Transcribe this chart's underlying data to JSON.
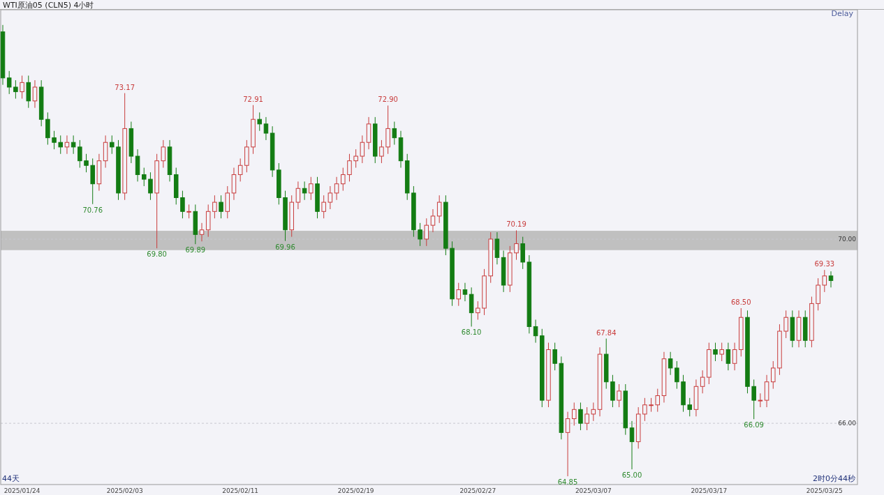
{
  "chart_data": {
    "type": "candlestick",
    "title": "WTI原油05 (CLN5) 4小时",
    "categories": [
      null,
      null,
      null,
      "2025/01/24",
      null,
      null,
      null,
      null,
      null,
      null,
      null,
      null,
      null,
      null,
      null,
      null,
      null,
      null,
      null,
      "2025/02/03",
      null,
      null,
      null,
      null,
      null,
      null,
      null,
      null,
      null,
      null,
      null,
      null,
      null,
      null,
      null,
      null,
      null,
      "2025/02/11",
      null,
      null,
      null,
      null,
      null,
      null,
      null,
      null,
      null,
      null,
      null,
      null,
      null,
      null,
      null,
      null,
      null,
      "2025/02/19",
      null,
      null,
      null,
      null,
      null,
      null,
      null,
      null,
      null,
      null,
      null,
      null,
      null,
      null,
      null,
      null,
      null,
      null,
      "2025/02/27",
      null,
      null,
      null,
      null,
      null,
      null,
      null,
      null,
      null,
      null,
      null,
      null,
      null,
      null,
      null,
      null,
      null,
      "2025/03/07",
      null,
      null,
      null,
      null,
      null,
      null,
      null,
      null,
      null,
      null,
      null,
      null,
      null,
      null,
      null,
      null,
      null,
      "2025/03/17",
      null,
      null,
      null,
      null,
      null,
      null,
      null,
      null,
      null,
      null,
      null,
      null,
      null,
      null,
      null,
      null,
      null,
      "2025/03/25",
      null
    ],
    "ohlc": [
      [
        74.5,
        74.65,
        73.35,
        73.5
      ],
      [
        73.5,
        73.65,
        73.15,
        73.3
      ],
      [
        73.3,
        73.45,
        73.05,
        73.2
      ],
      [
        73.2,
        73.55,
        73.05,
        73.4
      ],
      [
        73.4,
        73.55,
        72.85,
        73.0
      ],
      [
        73.0,
        73.45,
        72.85,
        73.3
      ],
      [
        73.3,
        73.45,
        72.45,
        72.6
      ],
      [
        72.6,
        72.75,
        72.05,
        72.2
      ],
      [
        72.2,
        72.35,
        71.95,
        72.1
      ],
      [
        72.1,
        72.25,
        71.85,
        72.0
      ],
      [
        72.0,
        72.25,
        71.85,
        72.1
      ],
      [
        72.1,
        72.25,
        71.85,
        72.0
      ],
      [
        72.0,
        72.15,
        71.55,
        71.7
      ],
      [
        71.7,
        71.85,
        71.45,
        71.6
      ],
      [
        71.6,
        71.75,
        70.76,
        71.2
      ],
      [
        71.2,
        71.85,
        71.05,
        71.7
      ],
      [
        71.7,
        72.25,
        71.55,
        72.1
      ],
      [
        72.1,
        72.25,
        71.85,
        72.0
      ],
      [
        72.0,
        72.15,
        70.85,
        71.0
      ],
      [
        71.0,
        73.17,
        70.85,
        72.4
      ],
      [
        72.4,
        72.55,
        71.65,
        71.8
      ],
      [
        71.8,
        71.95,
        71.25,
        71.4
      ],
      [
        71.4,
        71.55,
        71.15,
        71.3
      ],
      [
        71.3,
        71.45,
        70.85,
        71.0
      ],
      [
        71.0,
        71.85,
        69.8,
        71.7
      ],
      [
        71.7,
        72.15,
        71.55,
        72.0
      ],
      [
        72.0,
        72.15,
        71.25,
        71.4
      ],
      [
        71.4,
        71.55,
        70.75,
        70.9
      ],
      [
        70.9,
        71.05,
        70.45,
        70.6
      ],
      [
        70.6,
        70.75,
        70.45,
        70.6
      ],
      [
        70.6,
        70.75,
        69.89,
        70.1
      ],
      [
        70.1,
        70.35,
        69.95,
        70.2
      ],
      [
        70.2,
        70.75,
        70.05,
        70.6
      ],
      [
        70.6,
        70.95,
        70.45,
        70.8
      ],
      [
        70.8,
        70.95,
        70.45,
        70.6
      ],
      [
        70.6,
        71.15,
        70.45,
        71.0
      ],
      [
        71.0,
        71.55,
        70.85,
        71.4
      ],
      [
        71.4,
        71.75,
        71.25,
        71.6
      ],
      [
        71.6,
        72.15,
        71.45,
        72.0
      ],
      [
        72.0,
        72.91,
        71.85,
        72.6
      ],
      [
        72.6,
        72.75,
        72.35,
        72.5
      ],
      [
        72.5,
        72.65,
        72.15,
        72.3
      ],
      [
        72.3,
        72.45,
        71.35,
        71.5
      ],
      [
        71.5,
        71.65,
        70.75,
        70.9
      ],
      [
        70.9,
        71.05,
        69.96,
        70.2
      ],
      [
        70.2,
        70.95,
        70.05,
        70.8
      ],
      [
        70.8,
        71.25,
        70.65,
        71.1
      ],
      [
        71.1,
        71.25,
        70.85,
        71.0
      ],
      [
        71.0,
        71.35,
        70.85,
        71.2
      ],
      [
        71.2,
        71.35,
        70.45,
        70.6
      ],
      [
        70.6,
        70.95,
        70.45,
        70.8
      ],
      [
        70.8,
        71.15,
        70.65,
        71.0
      ],
      [
        71.0,
        71.35,
        70.85,
        71.2
      ],
      [
        71.2,
        71.55,
        71.05,
        71.4
      ],
      [
        71.4,
        71.85,
        71.25,
        71.7
      ],
      [
        71.7,
        71.95,
        71.55,
        71.8
      ],
      [
        71.8,
        72.25,
        71.65,
        72.1
      ],
      [
        72.1,
        72.65,
        71.95,
        72.5
      ],
      [
        72.5,
        72.65,
        71.65,
        71.8
      ],
      [
        71.8,
        72.15,
        71.65,
        72.0
      ],
      [
        72.0,
        72.9,
        71.85,
        72.4
      ],
      [
        72.4,
        72.55,
        72.05,
        72.2
      ],
      [
        72.2,
        72.35,
        71.55,
        71.7
      ],
      [
        71.7,
        71.85,
        70.85,
        71.0
      ],
      [
        71.0,
        71.15,
        70.05,
        70.2
      ],
      [
        70.2,
        70.35,
        69.85,
        70.0
      ],
      [
        70.0,
        70.45,
        69.85,
        70.3
      ],
      [
        70.3,
        70.65,
        70.15,
        70.5
      ],
      [
        70.5,
        70.95,
        70.35,
        70.8
      ],
      [
        70.8,
        70.95,
        69.65,
        69.8
      ],
      [
        69.8,
        69.95,
        68.55,
        68.7
      ],
      [
        68.7,
        69.05,
        68.55,
        68.9
      ],
      [
        68.9,
        69.05,
        68.65,
        68.8
      ],
      [
        68.8,
        68.95,
        68.1,
        68.4
      ],
      [
        68.4,
        68.65,
        68.25,
        68.5
      ],
      [
        68.5,
        69.35,
        68.35,
        69.2
      ],
      [
        69.2,
        70.15,
        69.05,
        70.0
      ],
      [
        70.0,
        70.15,
        69.45,
        69.6
      ],
      [
        69.6,
        69.75,
        68.85,
        69.0
      ],
      [
        69.0,
        69.85,
        68.85,
        69.7
      ],
      [
        69.7,
        70.19,
        69.55,
        69.9
      ],
      [
        69.9,
        70.05,
        69.35,
        69.5
      ],
      [
        69.5,
        69.65,
        67.95,
        68.1
      ],
      [
        68.1,
        68.25,
        67.75,
        67.9
      ],
      [
        67.9,
        68.05,
        66.35,
        66.5
      ],
      [
        66.5,
        67.75,
        66.35,
        67.6
      ],
      [
        67.6,
        67.75,
        67.15,
        67.3
      ],
      [
        67.3,
        67.45,
        65.65,
        65.8
      ],
      [
        65.8,
        66.25,
        64.85,
        66.1
      ],
      [
        66.1,
        66.45,
        65.95,
        66.3
      ],
      [
        66.3,
        66.45,
        65.85,
        66.0
      ],
      [
        66.0,
        66.35,
        65.85,
        66.2
      ],
      [
        66.2,
        66.45,
        66.05,
        66.3
      ],
      [
        66.3,
        67.65,
        66.15,
        67.5
      ],
      [
        67.5,
        67.84,
        66.75,
        66.9
      ],
      [
        66.9,
        67.05,
        66.35,
        66.5
      ],
      [
        66.5,
        66.85,
        66.35,
        66.7
      ],
      [
        66.7,
        66.85,
        65.75,
        65.9
      ],
      [
        65.9,
        66.05,
        65.0,
        65.6
      ],
      [
        65.6,
        66.35,
        65.45,
        66.2
      ],
      [
        66.2,
        66.55,
        66.05,
        66.4
      ],
      [
        66.4,
        66.55,
        66.25,
        66.4
      ],
      [
        66.4,
        66.75,
        66.25,
        66.6
      ],
      [
        66.6,
        67.55,
        66.45,
        67.4
      ],
      [
        67.4,
        67.55,
        67.05,
        67.2
      ],
      [
        67.2,
        67.35,
        66.75,
        66.9
      ],
      [
        66.9,
        67.05,
        66.25,
        66.4
      ],
      [
        66.4,
        66.55,
        66.15,
        66.3
      ],
      [
        66.3,
        66.95,
        66.15,
        66.8
      ],
      [
        66.8,
        67.15,
        66.65,
        67.0
      ],
      [
        67.0,
        67.75,
        66.85,
        67.6
      ],
      [
        67.6,
        67.75,
        67.35,
        67.5
      ],
      [
        67.5,
        67.75,
        67.35,
        67.6
      ],
      [
        67.6,
        67.75,
        67.15,
        67.3
      ],
      [
        67.3,
        67.75,
        67.15,
        67.6
      ],
      [
        67.6,
        68.5,
        67.45,
        68.3
      ],
      [
        68.3,
        68.45,
        66.65,
        66.8
      ],
      [
        66.8,
        66.95,
        66.09,
        66.5
      ],
      [
        66.5,
        66.65,
        66.35,
        66.5
      ],
      [
        66.5,
        67.05,
        66.35,
        66.9
      ],
      [
        66.9,
        67.35,
        66.75,
        67.2
      ],
      [
        67.2,
        68.15,
        67.05,
        68.0
      ],
      [
        68.0,
        68.45,
        67.85,
        68.3
      ],
      [
        68.3,
        68.45,
        67.65,
        67.8
      ],
      [
        67.8,
        68.45,
        67.65,
        68.3
      ],
      [
        68.3,
        68.45,
        67.65,
        67.8
      ],
      [
        67.8,
        68.75,
        67.65,
        68.6
      ],
      [
        68.6,
        69.15,
        68.45,
        69.0
      ],
      [
        69.0,
        69.33,
        68.85,
        69.2
      ],
      [
        69.2,
        69.3,
        68.95,
        69.1
      ]
    ],
    "ylim": [
      64.67,
      74.98
    ],
    "yticks": [
      {
        "value": 70,
        "label": "70.00"
      },
      {
        "value": 66,
        "label": "66.00"
      }
    ],
    "grid": "y",
    "bands": [
      {
        "axis": "y",
        "from": 69.76,
        "to": 70.18,
        "color": "#c0c0c0"
      }
    ],
    "annotations": [
      "Delay",
      "44天",
      "2时0分44秒",
      {
        "text": "73.17",
        "y": 73.17
      },
      {
        "text": "70.76",
        "y": 70.76
      },
      {
        "text": "69.80",
        "y": 69.8
      },
      {
        "text": "69.89",
        "y": 69.89
      },
      {
        "text": "72.91",
        "y": 72.91
      },
      {
        "text": "69.96",
        "y": 69.96
      },
      {
        "text": "72.90",
        "y": 72.9
      },
      {
        "text": "68.10",
        "y": 68.1
      },
      {
        "text": "70.19",
        "y": 70.19
      },
      {
        "text": "64.85",
        "y": 64.85
      },
      {
        "text": "67.84",
        "y": 67.84
      },
      {
        "text": "65.00",
        "y": 65.0
      },
      {
        "text": "68.50",
        "y": 68.5
      },
      {
        "text": "66.09",
        "y": 66.09
      },
      {
        "text": "69.33",
        "y": 69.33
      }
    ]
  }
}
